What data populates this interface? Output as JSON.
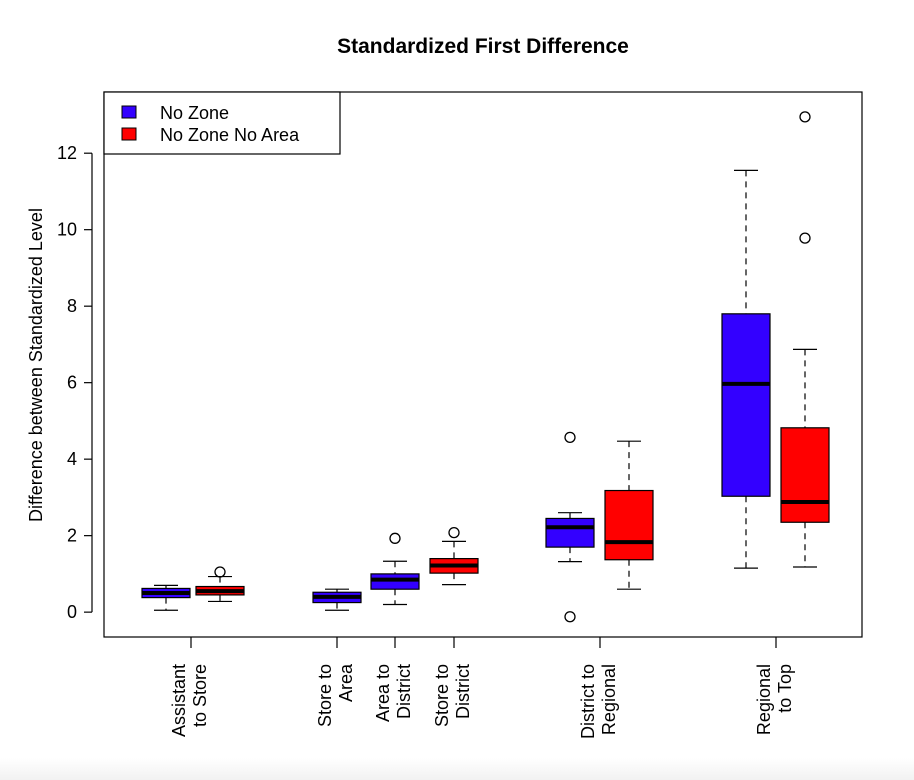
{
  "chart_data": {
    "type": "box",
    "title": "Standardized First Difference",
    "xlabel": "",
    "ylabel": "Difference between Standardized Level",
    "ylim": [
      -0.65,
      13.6
    ],
    "yticks": [
      0,
      2,
      4,
      6,
      8,
      10,
      12
    ],
    "grid": false,
    "legend_position": "top-left",
    "categories": [
      {
        "line1": "Assistant",
        "line2": "to Store"
      },
      {
        "line1": "Store to",
        "line2": "Area"
      },
      {
        "line1": "Area to",
        "line2": "District"
      },
      {
        "line1": "Store to",
        "line2": "District"
      },
      {
        "line1": "District to",
        "line2": "Regional"
      },
      {
        "line1": "Regional",
        "line2": "to Top"
      }
    ],
    "series": [
      {
        "name": "No Zone",
        "color": "#3300ff"
      },
      {
        "name": "No Zone No Area",
        "color": "#ff0000"
      }
    ],
    "boxes": [
      {
        "series": 0,
        "category": 0,
        "min": 0.05,
        "q1": 0.38,
        "median": 0.5,
        "q3": 0.62,
        "max": 0.7,
        "outliers": []
      },
      {
        "series": 1,
        "category": 0,
        "min": 0.28,
        "q1": 0.45,
        "median": 0.55,
        "q3": 0.67,
        "max": 0.93,
        "outliers": [
          1.05
        ]
      },
      {
        "series": 0,
        "category": 1,
        "min": 0.05,
        "q1": 0.25,
        "median": 0.4,
        "q3": 0.52,
        "max": 0.6,
        "outliers": []
      },
      {
        "series": 0,
        "category": 2,
        "min": 0.2,
        "q1": 0.6,
        "median": 0.85,
        "q3": 1.0,
        "max": 1.33,
        "outliers": [
          1.93
        ]
      },
      {
        "series": 1,
        "category": 3,
        "min": 0.72,
        "q1": 1.02,
        "median": 1.22,
        "q3": 1.4,
        "max": 1.85,
        "outliers": [
          2.08
        ]
      },
      {
        "series": 0,
        "category": 4,
        "min": 1.32,
        "q1": 1.7,
        "median": 2.22,
        "q3": 2.45,
        "max": 2.6,
        "outliers": [
          4.57,
          -0.12
        ]
      },
      {
        "series": 1,
        "category": 4,
        "min": 0.6,
        "q1": 1.37,
        "median": 1.83,
        "q3": 3.18,
        "max": 4.47,
        "outliers": []
      },
      {
        "series": 0,
        "category": 5,
        "min": 1.15,
        "q1": 3.03,
        "median": 5.97,
        "q3": 7.8,
        "max": 11.55,
        "outliers": []
      },
      {
        "series": 1,
        "category": 5,
        "min": 1.18,
        "q1": 2.35,
        "median": 2.88,
        "q3": 4.82,
        "max": 6.87,
        "outliers": [
          9.78,
          12.95
        ]
      }
    ]
  }
}
